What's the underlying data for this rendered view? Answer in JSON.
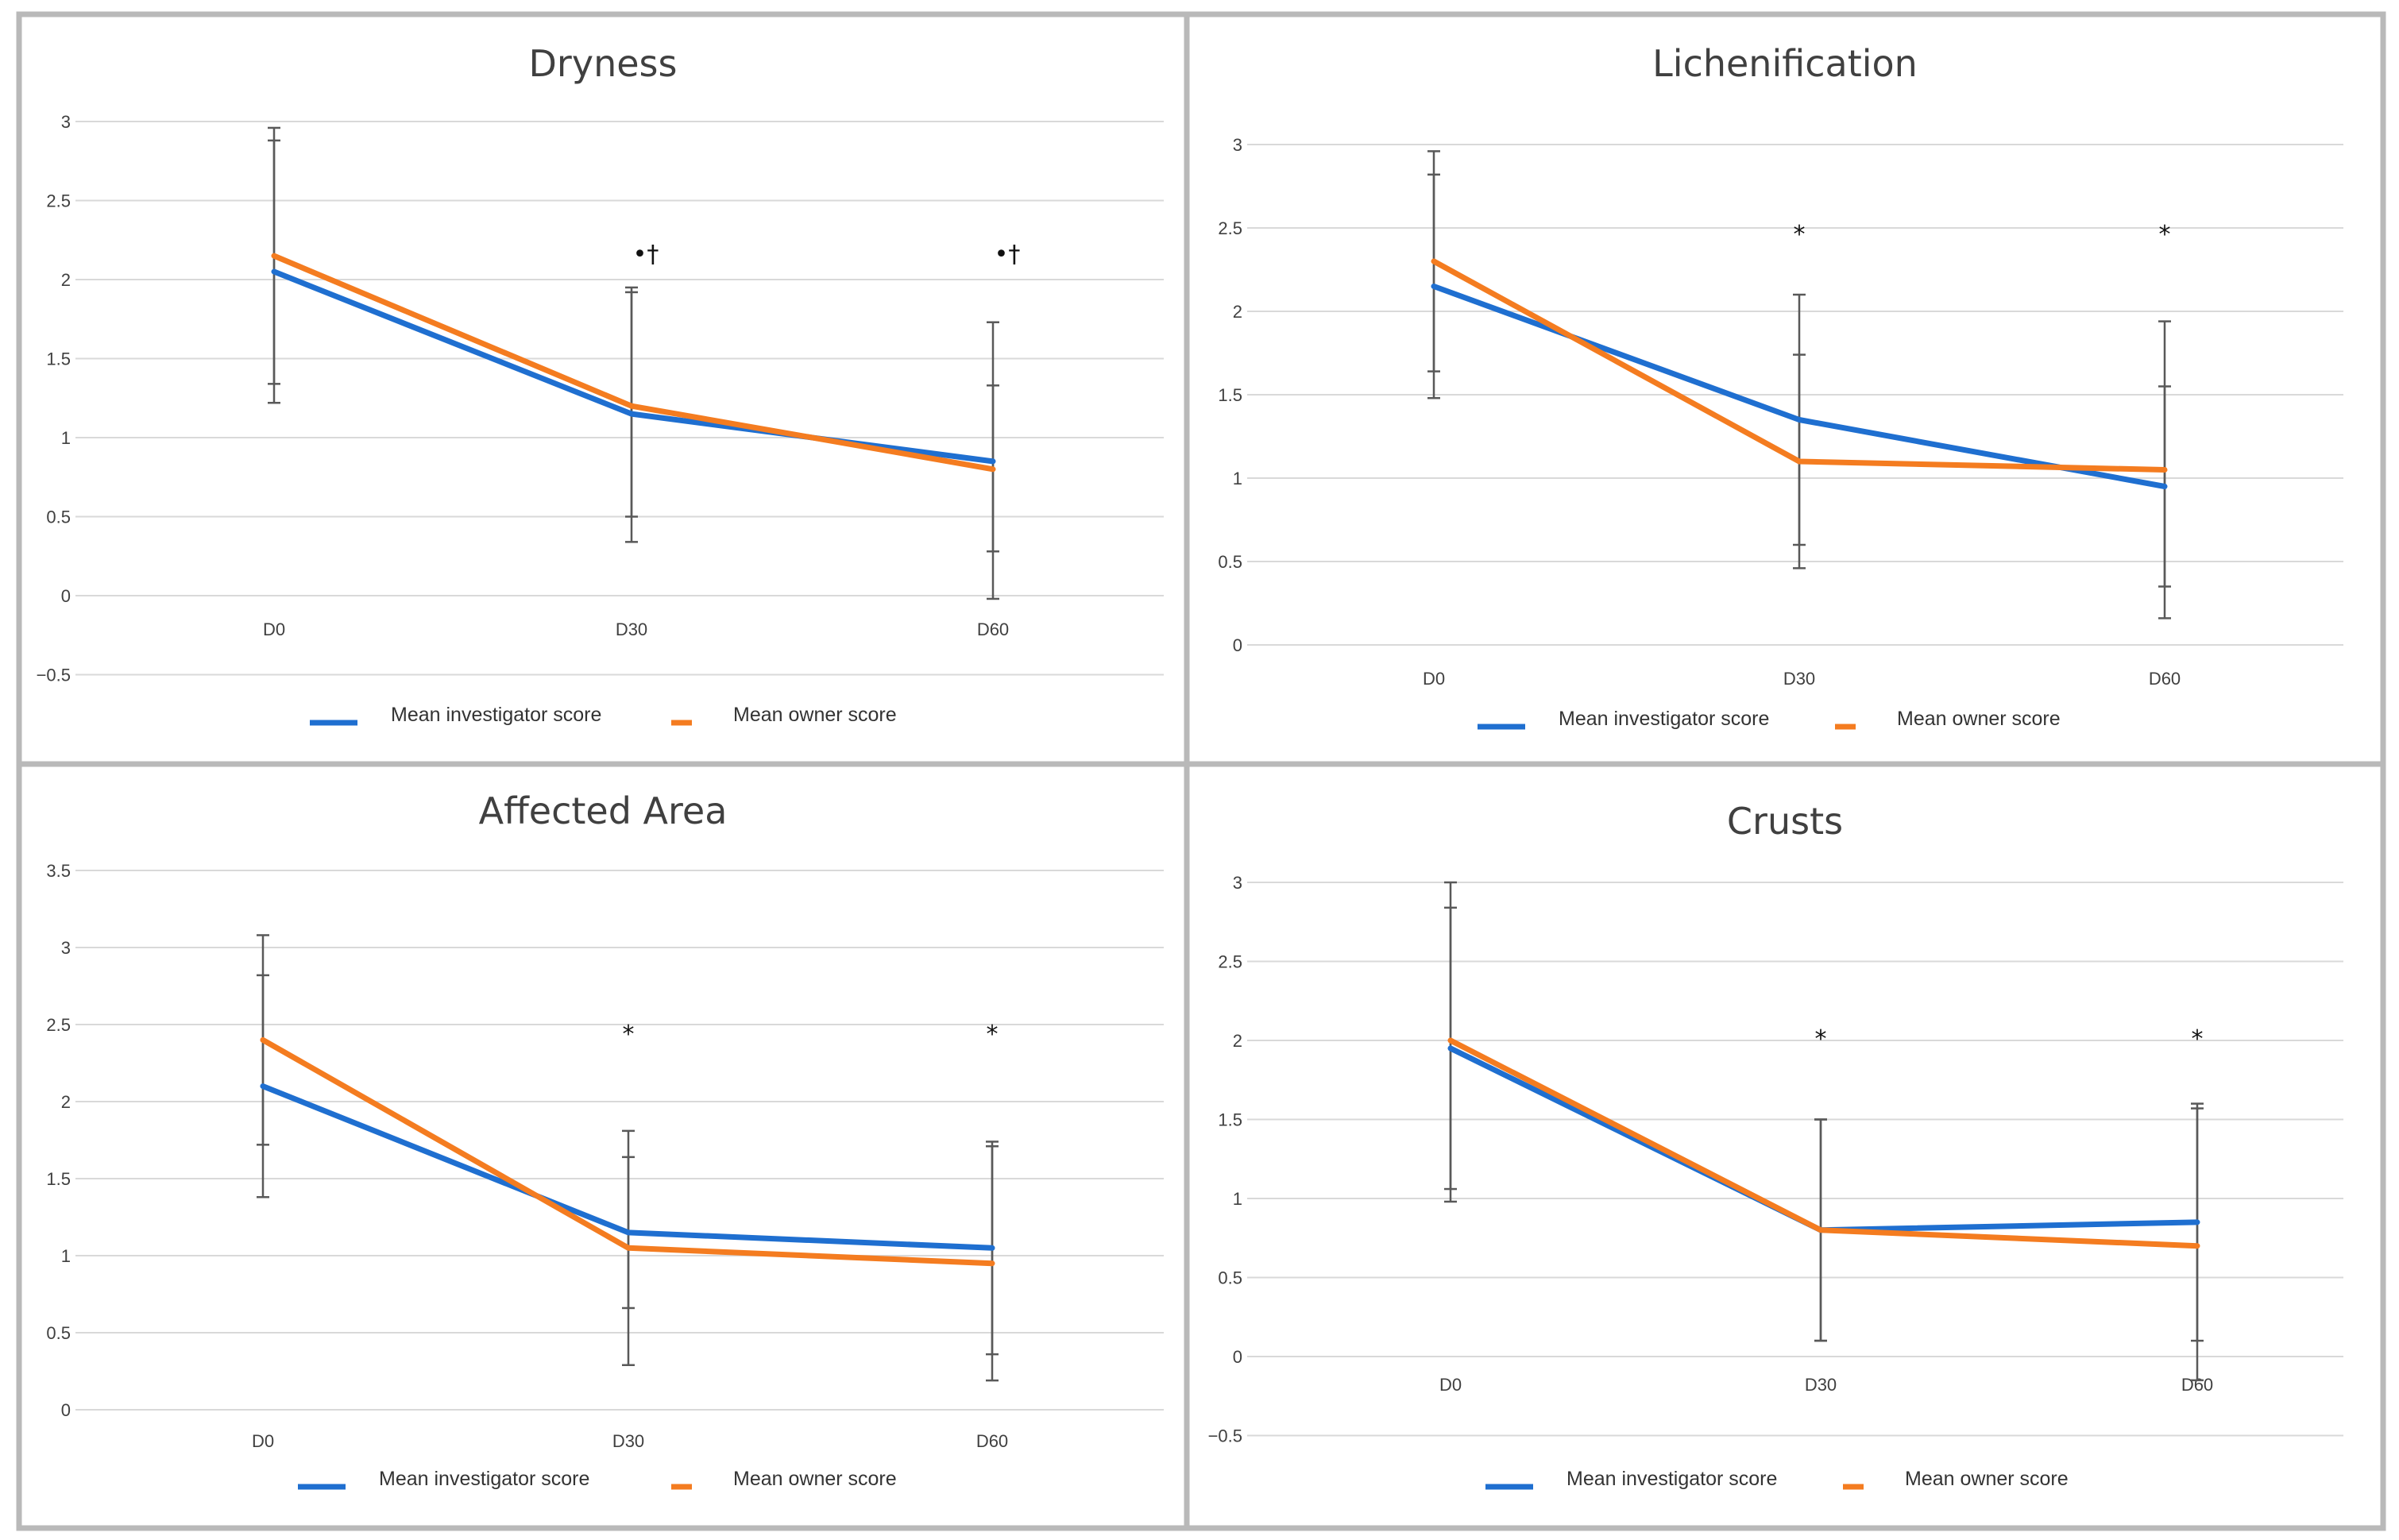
{
  "colors": {
    "investigator": "#1f6fd0",
    "owner": "#f47c20"
  },
  "chart_data": [
    {
      "type": "line",
      "title": "Dryness",
      "categories": [
        "D0",
        "D30",
        "D60"
      ],
      "yticks": [
        "3",
        "2.5",
        "2",
        "1.5",
        "1",
        "0.5",
        "0",
        "−0.5"
      ],
      "ylim": [
        -0.5,
        3
      ],
      "series": [
        {
          "name": "Mean investigator score",
          "values": [
            2.05,
            1.15,
            0.85
          ],
          "error_low": [
            1.22,
            0.34,
            -0.02
          ],
          "error_high": [
            2.88,
            1.95,
            1.73
          ]
        },
        {
          "name": "Mean owner score",
          "values": [
            2.15,
            1.2,
            0.8
          ],
          "error_low": [
            1.34,
            0.5,
            0.28
          ],
          "error_high": [
            2.96,
            1.92,
            1.33
          ]
        }
      ],
      "annotations": [
        "",
        "•†",
        "•†"
      ],
      "grid": true,
      "legend": "bottom"
    },
    {
      "type": "line",
      "title": "Lichenification",
      "categories": [
        "D0",
        "D30",
        "D60"
      ],
      "yticks": [
        "3",
        "2.5",
        "2",
        "1.5",
        "1",
        "0.5",
        "0"
      ],
      "ylim": [
        0,
        3
      ],
      "series": [
        {
          "name": "Mean investigator score",
          "values": [
            2.15,
            1.35,
            0.95
          ],
          "error_low": [
            1.48,
            0.6,
            0.35
          ],
          "error_high": [
            2.82,
            2.1,
            1.55
          ]
        },
        {
          "name": "Mean owner score",
          "values": [
            2.3,
            1.1,
            1.05
          ],
          "error_low": [
            1.64,
            0.46,
            0.16
          ],
          "error_high": [
            2.96,
            1.74,
            1.94
          ]
        }
      ],
      "annotations": [
        "",
        "*",
        "*"
      ],
      "grid": true,
      "legend": "bottom"
    },
    {
      "type": "line",
      "title": "Affected Area",
      "categories": [
        "D0",
        "D30",
        "D60"
      ],
      "yticks": [
        "3.5",
        "3",
        "2.5",
        "2",
        "1.5",
        "1",
        "0.5",
        "0"
      ],
      "ylim": [
        0,
        3.5
      ],
      "series": [
        {
          "name": "Mean investigator score",
          "values": [
            2.1,
            1.15,
            1.05
          ],
          "error_low": [
            1.38,
            0.66,
            0.36
          ],
          "error_high": [
            2.82,
            1.64,
            1.74
          ]
        },
        {
          "name": "Mean owner score",
          "values": [
            2.4,
            1.05,
            0.95
          ],
          "error_low": [
            1.72,
            0.29,
            0.19
          ],
          "error_high": [
            3.08,
            1.81,
            1.71
          ]
        }
      ],
      "annotations": [
        "",
        "*",
        "*"
      ],
      "grid": true,
      "legend": "bottom"
    },
    {
      "type": "line",
      "title": "Crusts",
      "categories": [
        "D0",
        "D30",
        "D60"
      ],
      "yticks": [
        "3",
        "2.5",
        "2",
        "1.5",
        "1",
        "0.5",
        "0",
        "−0.5"
      ],
      "ylim": [
        -0.5,
        3
      ],
      "series": [
        {
          "name": "Mean investigator score",
          "values": [
            1.95,
            0.8,
            0.85
          ],
          "error_low": [
            0.98,
            0.1,
            0.1
          ],
          "error_high": [
            2.84,
            1.5,
            1.6
          ]
        },
        {
          "name": "Mean owner score",
          "values": [
            2.0,
            0.8,
            0.7
          ],
          "error_low": [
            1.06,
            0.1,
            -0.15
          ],
          "error_high": [
            3.0,
            1.5,
            1.57
          ]
        }
      ],
      "annotations": [
        "",
        "*",
        "*"
      ],
      "grid": true,
      "legend": "bottom"
    }
  ]
}
